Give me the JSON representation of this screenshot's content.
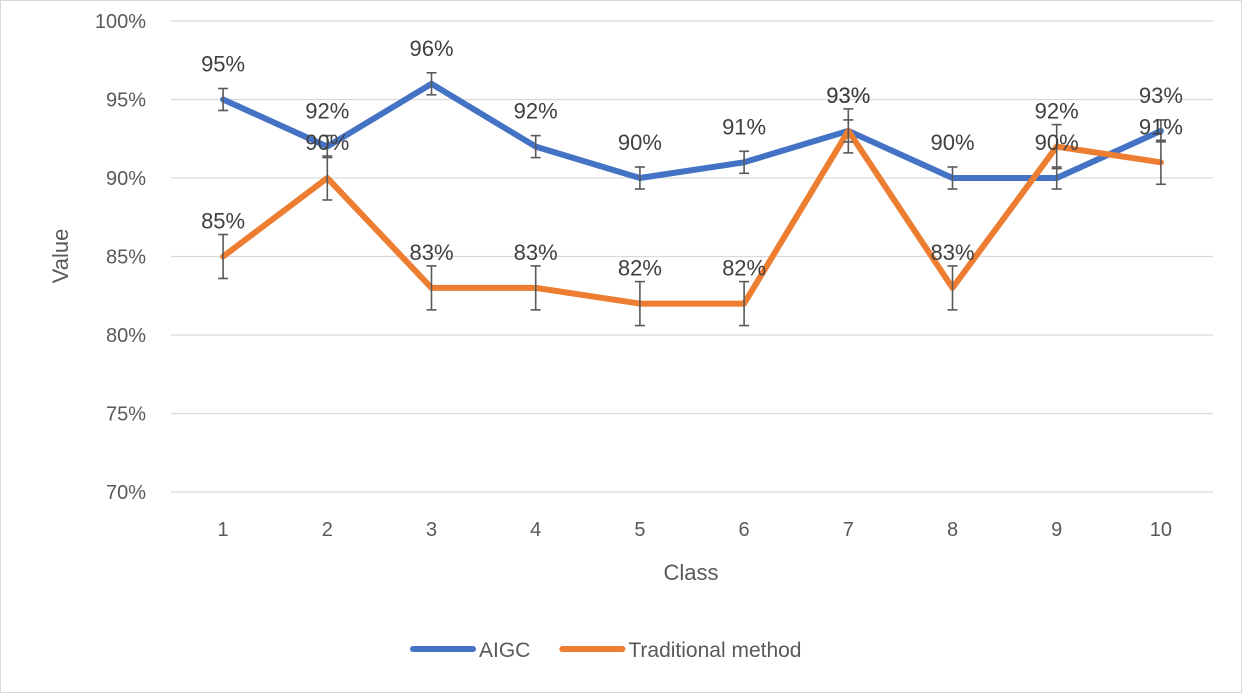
{
  "chart_data": {
    "type": "line",
    "title": "",
    "xlabel": "Class",
    "ylabel": "Value",
    "categories": [
      "1",
      "2",
      "3",
      "4",
      "5",
      "6",
      "7",
      "8",
      "9",
      "10"
    ],
    "ylim": [
      0.7,
      1.0
    ],
    "yticks": [
      "70%",
      "75%",
      "80%",
      "85%",
      "90%",
      "95%",
      "100%"
    ],
    "grid": true,
    "legend_position": "bottom",
    "series": [
      {
        "name": "AIGC",
        "color": "#4472c4",
        "values": [
          0.95,
          0.92,
          0.96,
          0.92,
          0.9,
          0.91,
          0.93,
          0.9,
          0.9,
          0.93
        ],
        "labels": [
          "95%",
          "92%",
          "96%",
          "92%",
          "90%",
          "91%",
          "93%",
          "90%",
          "90%",
          "93%"
        ],
        "error": 0.007
      },
      {
        "name": "Traditional method",
        "color": "#ed7d31",
        "values": [
          0.85,
          0.9,
          0.83,
          0.83,
          0.82,
          0.82,
          0.93,
          0.83,
          0.92,
          0.91
        ],
        "labels": [
          "85%",
          "90%",
          "83%",
          "83%",
          "82%",
          "82%",
          "93%",
          "83%",
          "92%",
          "91%"
        ],
        "error": 0.014
      }
    ]
  }
}
